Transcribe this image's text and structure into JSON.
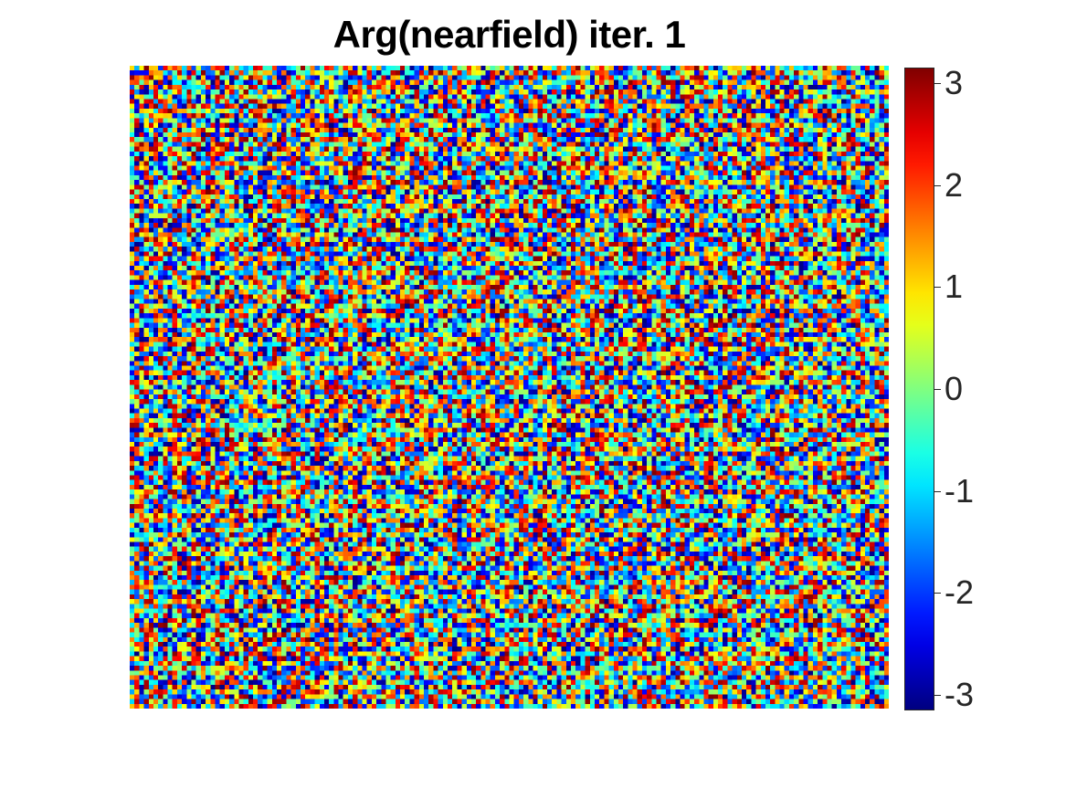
{
  "chart_data": {
    "type": "heatmap",
    "title": "Arg(nearfield) iter. 1",
    "colormap": "jet",
    "grid": false,
    "legend": "colorbar right",
    "color_range": [
      -3.14159,
      3.14159
    ],
    "colorbar_ticks": [
      3,
      2,
      1,
      0,
      -1,
      -2,
      -3
    ],
    "colorbar_tick_labels": [
      "3",
      "2",
      "1",
      "0",
      "-1",
      "-2",
      "-3"
    ],
    "grid_size": [
      160,
      135
    ],
    "values_description": "Phase values uniformly random noise in [-π, π]"
  }
}
